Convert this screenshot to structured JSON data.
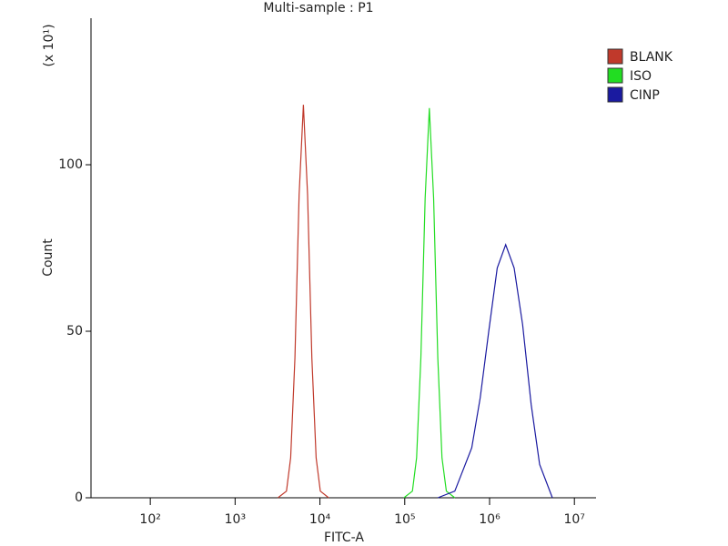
{
  "chart_data": {
    "type": "line",
    "title": "Multi-sample : P1",
    "x_label": "FITC-A",
    "y_label": "Count",
    "y_unit_label": "(x 10¹)",
    "xscale": "log",
    "legend": "right",
    "xlim": [
      20,
      18000000
    ],
    "xticks": [
      {
        "value": 100,
        "label": "10²"
      },
      {
        "value": 1000,
        "label": "10³"
      },
      {
        "value": 10000,
        "label": "10⁴"
      },
      {
        "value": 100000,
        "label": "10⁵"
      },
      {
        "value": 1000000,
        "label": "10⁶"
      },
      {
        "value": 10000000,
        "label": "10⁷"
      }
    ],
    "ylim": [
      0,
      144
    ],
    "yticks": [
      0,
      50,
      100
    ],
    "series": [
      {
        "name": "BLANK",
        "color": "#c0392b",
        "x": [
          3200,
          4030,
          4520,
          5070,
          5690,
          6380,
          7160,
          8040,
          9020,
          10100,
          12700
        ],
        "values": [
          0,
          2,
          12,
          42,
          91,
          118,
          91,
          42,
          12,
          2,
          0
        ]
      },
      {
        "name": "ISO",
        "color": "#22dd22",
        "x": [
          97700,
          123000,
          138000,
          155000,
          174000,
          195000,
          219000,
          245000,
          275000,
          309000,
          389000
        ],
        "values": [
          0,
          2,
          12,
          42,
          90,
          117,
          90,
          42,
          12,
          2,
          0
        ]
      },
      {
        "name": "CINP",
        "color": "#1a1aa0",
        "x": [
          245000,
          389000,
          617000,
          776000,
          977000,
          1230000,
          1550000,
          1950000,
          2450000,
          3090000,
          3890000,
          5500000
        ],
        "values": [
          0,
          2,
          15,
          30,
          50,
          69,
          76,
          69,
          52,
          28,
          10,
          0
        ]
      }
    ]
  }
}
